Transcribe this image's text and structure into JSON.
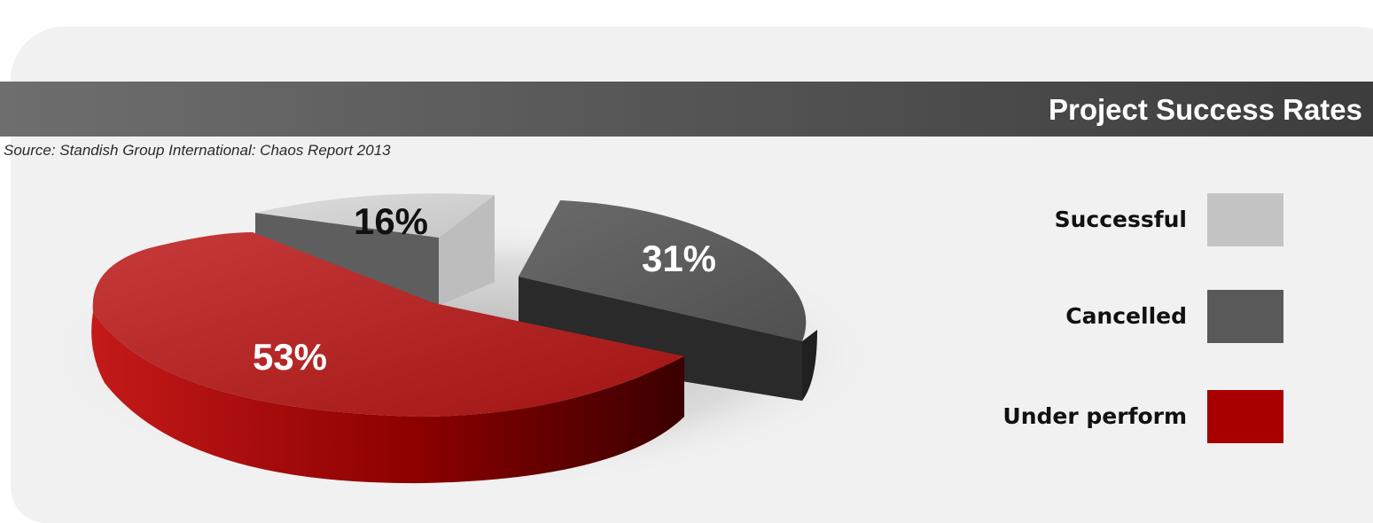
{
  "chart_data": {
    "type": "pie",
    "title": "Project Success Rates",
    "subtitle": "Source: Standish Group International:  Chaos Report 2013",
    "series": [
      {
        "name": "Successful",
        "value": 16,
        "label": "16%",
        "color": "#c4c4c4"
      },
      {
        "name": "Cancelled",
        "value": 31,
        "label": "31%",
        "color": "#595959"
      },
      {
        "name": "Under perform",
        "value": 53,
        "label": "53%",
        "color": "#a80000"
      }
    ],
    "legend_position": "right",
    "style": "3d-exploded"
  }
}
